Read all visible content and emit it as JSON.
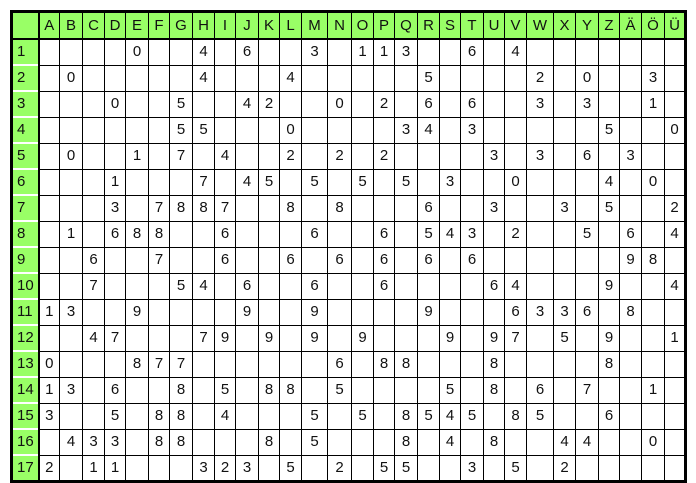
{
  "header_color": "#99ff66",
  "columns": [
    "A",
    "B",
    "C",
    "D",
    "E",
    "F",
    "G",
    "H",
    "I",
    "J",
    "K",
    "L",
    "M",
    "N",
    "O",
    "P",
    "Q",
    "R",
    "S",
    "T",
    "U",
    "V",
    "W",
    "X",
    "Y",
    "Z",
    "Ä",
    "Ö",
    "Ü"
  ],
  "rows": [
    {
      "label": "1",
      "cells": {
        "E": "0",
        "H": "4",
        "J": "6",
        "M": "3",
        "O": "1",
        "P": "1",
        "Q": "3",
        "T": "6",
        "V": "4"
      }
    },
    {
      "label": "2",
      "cells": {
        "B": "0",
        "H": "4",
        "L": "4",
        "R": "5",
        "W": "2",
        "Y": "0",
        "Ö": "3"
      }
    },
    {
      "label": "3",
      "cells": {
        "D": "0",
        "G": "5",
        "J": "4",
        "K": "2",
        "N": "0",
        "P": "2",
        "R": "6",
        "T": "6",
        "W": "3",
        "Y": "3",
        "Ö": "1"
      }
    },
    {
      "label": "4",
      "cells": {
        "G": "5",
        "H": "5",
        "L": "0",
        "Q": "3",
        "R": "4",
        "T": "3",
        "Z": "5",
        "Ü": "0"
      }
    },
    {
      "label": "5",
      "cells": {
        "B": "0",
        "E": "1",
        "G": "7",
        "I": "4",
        "L": "2",
        "N": "2",
        "P": "2",
        "U": "3",
        "W": "3",
        "Y": "6",
        "Ä": "3"
      }
    },
    {
      "label": "6",
      "cells": {
        "D": "1",
        "H": "7",
        "J": "4",
        "K": "5",
        "M": "5",
        "O": "5",
        "Q": "5",
        "S": "3",
        "V": "0",
        "Z": "4",
        "Ö": "0"
      }
    },
    {
      "label": "7",
      "cells": {
        "D": "3",
        "F": "7",
        "G": "8",
        "H": "8",
        "I": "7",
        "L": "8",
        "N": "8",
        "R": "6",
        "U": "3",
        "X": "3",
        "Z": "5",
        "Ü": "2"
      }
    },
    {
      "label": "8",
      "cells": {
        "B": "1",
        "D": "6",
        "E": "8",
        "F": "8",
        "I": "6",
        "M": "6",
        "P": "6",
        "R": "5",
        "S": "4",
        "T": "3",
        "V": "2",
        "Y": "5",
        "Ä": "6",
        "Ü": "4"
      }
    },
    {
      "label": "9",
      "cells": {
        "C": "6",
        "F": "7",
        "I": "6",
        "L": "6",
        "N": "6",
        "P": "6",
        "R": "6",
        "T": "6",
        "Ä": "9",
        "Ö": "8"
      }
    },
    {
      "label": "10",
      "cells": {
        "C": "7",
        "G": "5",
        "H": "4",
        "J": "6",
        "M": "6",
        "P": "6",
        "U": "6",
        "V": "4",
        "Z": "9",
        "Ü": "4"
      }
    },
    {
      "label": "11",
      "cells": {
        "A": "1",
        "B": "3",
        "E": "9",
        "J": "9",
        "M": "9",
        "R": "9",
        "V": "6",
        "W": "3",
        "X": "3",
        "Y": "6",
        "Ä": "8"
      }
    },
    {
      "label": "12",
      "cells": {
        "C": "4",
        "D": "7",
        "H": "7",
        "I": "9",
        "K": "9",
        "M": "9",
        "O": "9",
        "S": "9",
        "U": "9",
        "V": "7",
        "X": "5",
        "Z": "9",
        "Ü": "1"
      }
    },
    {
      "label": "13",
      "cells": {
        "A": "0",
        "E": "8",
        "F": "7",
        "G": "7",
        "N": "6",
        "P": "8",
        "Q": "8",
        "U": "8",
        "Z": "8"
      }
    },
    {
      "label": "14",
      "cells": {
        "A": "1",
        "B": "3",
        "D": "6",
        "G": "8",
        "I": "5",
        "K": "8",
        "L": "8",
        "N": "5",
        "S": "5",
        "U": "8",
        "W": "6",
        "Y": "7",
        "Ö": "1"
      }
    },
    {
      "label": "15",
      "cells": {
        "A": "3",
        "D": "5",
        "F": "8",
        "G": "8",
        "I": "4",
        "M": "5",
        "O": "5",
        "Q": "8",
        "R": "5",
        "S": "4",
        "T": "5",
        "V": "8",
        "W": "5",
        "Z": "6"
      }
    },
    {
      "label": "16",
      "cells": {
        "B": "4",
        "C": "3",
        "D": "3",
        "F": "8",
        "G": "8",
        "K": "8",
        "M": "5",
        "Q": "8",
        "S": "4",
        "U": "8",
        "X": "4",
        "Y": "4",
        "Ö": "0"
      }
    },
    {
      "label": "17",
      "cells": {
        "A": "2",
        "C": "1",
        "D": "1",
        "H": "3",
        "I": "2",
        "J": "3",
        "L": "5",
        "N": "2",
        "P": "5",
        "Q": "5",
        "T": "3",
        "V": "5",
        "X": "2"
      }
    }
  ]
}
